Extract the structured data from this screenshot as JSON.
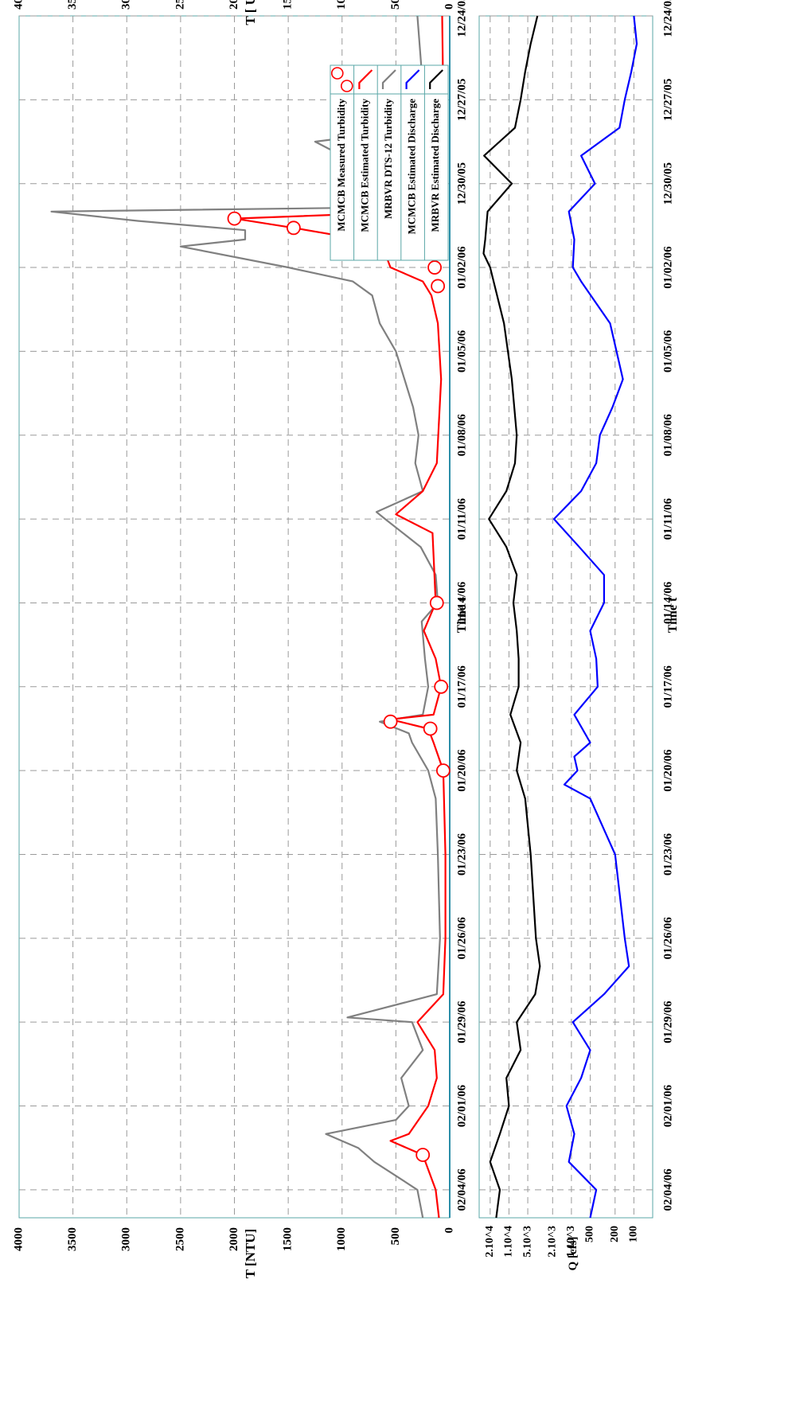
{
  "chart_data": [
    {
      "type": "line",
      "xlabel": "Time t",
      "ylabel_left": "T [NTU]",
      "ylabel_right": "T [ U]",
      "ylim": [
        0,
        4000
      ],
      "yticks": [
        0,
        500,
        1000,
        1500,
        2000,
        2500,
        3000,
        3500,
        4000
      ],
      "ytick_labels": [
        "0",
        "500",
        "1000",
        "1500",
        "2000",
        "2500",
        "3000",
        "3500",
        "4000"
      ],
      "x_range": [
        "2005-12-24",
        "2006-02-05"
      ],
      "xticks": [
        "12/24/05",
        "12/27/05",
        "12/30/05",
        "01/02/06",
        "01/05/06",
        "01/08/06",
        "01/11/06",
        "01/14/06",
        "01/17/06",
        "01/20/06",
        "01/23/06",
        "01/26/06",
        "01/29/06",
        "02/01/06",
        "02/04/06"
      ],
      "grid": true,
      "legend_placement": "top-right",
      "legend": [
        {
          "name": "MRBVR  Estimated Discharge",
          "color": "#000000",
          "style": "line"
        },
        {
          "name": "MCMCB Estimated Discharge",
          "color": "#0000ff",
          "style": "line"
        },
        {
          "name": "MRBVR DTS-12  Turbidity",
          "color": "#808080",
          "style": "line"
        },
        {
          "name": "MCMCB Estimated Turbidity",
          "color": "#ff0000",
          "style": "line"
        },
        {
          "name": "MCMCB Measured Turbidity",
          "color": "#ff0000",
          "style": "marker"
        }
      ],
      "series": [
        {
          "name": "MRBVR DTS-12  Turbidity",
          "color": "#808080",
          "points": [
            [
              "12/24/05",
              300
            ],
            [
              "12/25/05",
              280
            ],
            [
              "12/26/05",
              260
            ],
            [
              "12/27/05",
              200
            ],
            [
              "12/28/05",
              230
            ],
            [
              "12/28/05 12:00",
              1250
            ],
            [
              "12/29/05",
              1000
            ],
            [
              "12/29/05 12:00",
              700
            ],
            [
              "12/30/05",
              400
            ],
            [
              "12/30/05 20:00",
              300
            ],
            [
              "12/31/05",
              3700
            ],
            [
              "12/31/05 08:00",
              2900
            ],
            [
              "12/31/05 16:00",
              1900
            ],
            [
              "01/01/06",
              1900
            ],
            [
              "01/01/06 06:00",
              2500
            ],
            [
              "01/02/06",
              1500
            ],
            [
              "01/02/06 12:00",
              900
            ],
            [
              "01/03/06",
              720
            ],
            [
              "01/04/06",
              650
            ],
            [
              "01/05/06",
              500
            ],
            [
              "01/06/06",
              420
            ],
            [
              "01/07/06",
              340
            ],
            [
              "01/08/06",
              290
            ],
            [
              "01/09/06",
              320
            ],
            [
              "01/10/06",
              250
            ],
            [
              "01/10/06 18:00",
              680
            ],
            [
              "01/11/06",
              600
            ],
            [
              "01/12/06",
              270
            ],
            [
              "01/13/06",
              130
            ],
            [
              "01/14/06",
              110
            ],
            [
              "01/14/06 16:00",
              260
            ],
            [
              "01/16/06",
              230
            ],
            [
              "01/17/06",
              200
            ],
            [
              "01/18/06",
              250
            ],
            [
              "01/18/06 06:00",
              650
            ],
            [
              "01/18/06 16:00",
              380
            ],
            [
              "01/19/06",
              350
            ],
            [
              "01/20/06",
              200
            ],
            [
              "01/21/06",
              130
            ],
            [
              "01/23/06",
              110
            ],
            [
              "01/26/06",
              90
            ],
            [
              "01/28/06",
              120
            ],
            [
              "01/28/06 20:00",
              950
            ],
            [
              "01/29/06",
              350
            ],
            [
              "01/30/06",
              250
            ],
            [
              "01/31/06",
              450
            ],
            [
              "02/01/06",
              380
            ],
            [
              "02/01/06 12:00",
              500
            ],
            [
              "02/02/06",
              1150
            ],
            [
              "02/02/06 12:00",
              850
            ],
            [
              "02/03/06",
              700
            ],
            [
              "02/03/06 12:00",
              500
            ],
            [
              "02/04/06",
              300
            ],
            [
              "02/05/06",
              250
            ]
          ]
        },
        {
          "name": "MCMCB Estimated Turbidity",
          "color": "#ff0000",
          "points": [
            [
              "12/24/05",
              70
            ],
            [
              "12/27/05",
              60
            ],
            [
              "12/28/05",
              120
            ],
            [
              "12/28/05 06:00",
              1100
            ],
            [
              "12/28/05 16:00",
              300
            ],
            [
              "12/29/05",
              240
            ],
            [
              "12/30/05",
              90
            ],
            [
              "12/31/05",
              250
            ],
            [
              "12/31/05 06:00",
              2000
            ],
            [
              "12/31/05 14:00",
              1450
            ],
            [
              "01/01/06",
              820
            ],
            [
              "01/01/06 12:00",
              600
            ],
            [
              "01/02/06",
              550
            ],
            [
              "01/02/06 12:00",
              250
            ],
            [
              "01/03/06",
              170
            ],
            [
              "01/04/06",
              110
            ],
            [
              "01/06/06",
              80
            ],
            [
              "01/09/06",
              120
            ],
            [
              "01/10/06",
              250
            ],
            [
              "01/10/06 20:00",
              500
            ],
            [
              "01/11/06 12:00",
              160
            ],
            [
              "01/14/06",
              130
            ],
            [
              "01/15/06",
              240
            ],
            [
              "01/16/06",
              130
            ],
            [
              "01/17/06",
              80
            ],
            [
              "01/18/06",
              150
            ],
            [
              "01/18/06 04:00",
              550
            ],
            [
              "01/18/06 12:00",
              200
            ],
            [
              "01/19/06",
              150
            ],
            [
              "01/20/06",
              60
            ],
            [
              "01/23/06",
              40
            ],
            [
              "01/26/06",
              40
            ],
            [
              "01/28/06",
              60
            ],
            [
              "01/29/06",
              300
            ],
            [
              "01/30/06",
              140
            ],
            [
              "01/31/06",
              120
            ],
            [
              "02/01/06",
              200
            ],
            [
              "02/02/06",
              380
            ],
            [
              "02/02/06 06:00",
              550
            ],
            [
              "02/02/06 18:00",
              250
            ],
            [
              "02/04/06",
              130
            ],
            [
              "02/05/06",
              100
            ]
          ]
        },
        {
          "name": "MCMCB Measured Turbidity",
          "color": "#ff0000",
          "style": "marker",
          "points": [
            [
              "12/28/05 16:00",
              180
            ],
            [
              "12/29/05",
              250
            ],
            [
              "12/30/05",
              80
            ],
            [
              "12/31/05 06:00",
              2000
            ],
            [
              "12/31/05 14:00",
              1450
            ],
            [
              "01/02/06",
              140
            ],
            [
              "01/02/06 16:00",
              110
            ],
            [
              "01/14/06",
              120
            ],
            [
              "01/17/06",
              80
            ],
            [
              "01/18/06 06:00",
              550
            ],
            [
              "01/18/06 12:00",
              180
            ],
            [
              "01/20/06",
              60
            ],
            [
              "02/02/06 18:00",
              250
            ]
          ]
        }
      ]
    },
    {
      "type": "line",
      "xlabel": "Time t",
      "ylabel": "Q [cfs]",
      "yscale": "log",
      "ytick_labels": [
        "2.10^4",
        "1.10^4",
        "5.10^3",
        "2.10^3",
        "1.10^3",
        "500",
        "200",
        "100"
      ],
      "x_range": [
        "2005-12-24",
        "2006-02-05"
      ],
      "xticks": [
        "12/24/05",
        "12/27/05",
        "12/30/05",
        "01/02/06",
        "01/05/06",
        "01/08/06",
        "01/11/06",
        "01/14/06",
        "01/17/06",
        "01/20/06",
        "01/23/06",
        "01/26/06",
        "01/29/06",
        "02/01/06",
        "02/04/06"
      ],
      "grid": true,
      "series": [
        {
          "name": "MRBVR  Estimated Discharge",
          "color": "#000000",
          "points": [
            [
              "12/24/05",
              3500
            ],
            [
              "12/25/05",
              4500
            ],
            [
              "12/26/05",
              5500
            ],
            [
              "12/27/05",
              6500
            ],
            [
              "12/28/05",
              8000
            ],
            [
              "12/29/05",
              25000
            ],
            [
              "12/30/05",
              9000
            ],
            [
              "12/31/05",
              22000
            ],
            [
              "01/01/06",
              24000
            ],
            [
              "01/01/06 12:00",
              25500
            ],
            [
              "01/02/06",
              20000
            ],
            [
              "01/04/06",
              12000
            ],
            [
              "01/06/06",
              9000
            ],
            [
              "01/08/06",
              7500
            ],
            [
              "01/09/06",
              8000
            ],
            [
              "01/10/06",
              11000
            ],
            [
              "01/11/06",
              21000
            ],
            [
              "01/12/06",
              11000
            ],
            [
              "01/13/06",
              7500
            ],
            [
              "01/14/06",
              8500
            ],
            [
              "01/15/06",
              7500
            ],
            [
              "01/16/06",
              7000
            ],
            [
              "01/17/06",
              7000
            ],
            [
              "01/18/06",
              9500
            ],
            [
              "01/19/06",
              6500
            ],
            [
              "01/20/06",
              7500
            ],
            [
              "01/21/06",
              5500
            ],
            [
              "01/23/06",
              4500
            ],
            [
              "01/26/06",
              3700
            ],
            [
              "01/27/06",
              3200
            ],
            [
              "01/28/06",
              3800
            ],
            [
              "01/29/06",
              7500
            ],
            [
              "01/30/06",
              6500
            ],
            [
              "01/31/06",
              11000
            ],
            [
              "02/01/06",
              10000
            ],
            [
              "02/02/06",
              14000
            ],
            [
              "02/03/06",
              20000
            ],
            [
              "02/04/06",
              14000
            ],
            [
              "02/05/06",
              16000
            ]
          ]
        },
        {
          "name": "MCMCB Estimated Discharge",
          "color": "#0000ff",
          "points": [
            [
              "12/24/05",
              100
            ],
            [
              "12/25/05",
              90
            ],
            [
              "12/26/05",
              110
            ],
            [
              "12/27/05",
              140
            ],
            [
              "12/28/05",
              170
            ],
            [
              "12/29/05",
              700
            ],
            [
              "12/30/05",
              420
            ],
            [
              "12/31/05",
              1100
            ],
            [
              "01/01/06",
              900
            ],
            [
              "01/02/06",
              950
            ],
            [
              "01/02/06 12:00",
              700
            ],
            [
              "01/04/06",
              240
            ],
            [
              "01/06/06",
              150
            ],
            [
              "01/07/06",
              220
            ],
            [
              "01/08/06",
              350
            ],
            [
              "01/09/06",
              400
            ],
            [
              "01/10/06",
              700
            ],
            [
              "01/11/06",
              1900
            ],
            [
              "01/12/06",
              750
            ],
            [
              "01/13/06",
              300
            ],
            [
              "01/14/06",
              300
            ],
            [
              "01/15/06",
              500
            ],
            [
              "01/16/06",
              400
            ],
            [
              "01/17/06",
              380
            ],
            [
              "01/18/06",
              900
            ],
            [
              "01/19/06",
              500
            ],
            [
              "01/19/06 12:00",
              900
            ],
            [
              "01/20/06",
              800
            ],
            [
              "01/20/06 12:00",
              1300
            ],
            [
              "01/21/06",
              500
            ],
            [
              "01/23/06",
              200
            ],
            [
              "01/26/06",
              140
            ],
            [
              "01/27/06",
              120
            ],
            [
              "01/28/06",
              300
            ],
            [
              "01/29/06",
              950
            ],
            [
              "01/30/06",
              500
            ],
            [
              "01/31/06",
              700
            ],
            [
              "02/01/06",
              1200
            ],
            [
              "02/02/06",
              900
            ],
            [
              "02/03/06",
              1100
            ],
            [
              "02/04/06",
              400
            ],
            [
              "02/05/06",
              500
            ]
          ]
        }
      ]
    }
  ]
}
